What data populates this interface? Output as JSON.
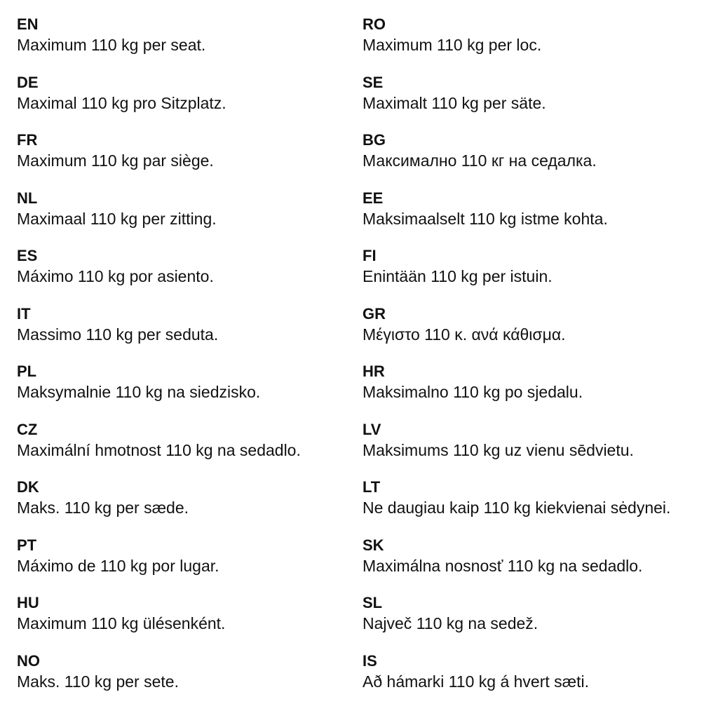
{
  "columns": [
    [
      {
        "code": "EN",
        "text": "Maximum 110 kg per seat."
      },
      {
        "code": "DE",
        "text": "Maximal 110 kg pro Sitzplatz."
      },
      {
        "code": "FR",
        "text": "Maximum 110 kg par siège."
      },
      {
        "code": "NL",
        "text": "Maximaal 110 kg per zitting."
      },
      {
        "code": "ES",
        "text": "Máximo 110 kg por asiento."
      },
      {
        "code": "IT",
        "text": "Massimo 110 kg per seduta."
      },
      {
        "code": "PL",
        "text": "Maksymalnie 110 kg na siedzisko."
      },
      {
        "code": "CZ",
        "text": "Maximální hmotnost 110 kg na sedadlo."
      },
      {
        "code": "DK",
        "text": "Maks. 110 kg per sæde."
      },
      {
        "code": "PT",
        "text": "Máximo de 110 kg por lugar."
      },
      {
        "code": "HU",
        "text": "Maximum 110 kg ülésenként."
      },
      {
        "code": "NO",
        "text": "Maks. 110 kg per sete."
      }
    ],
    [
      {
        "code": "RO",
        "text": "Maximum 110 kg per loc."
      },
      {
        "code": "SE",
        "text": "Maximalt 110 kg per säte."
      },
      {
        "code": "BG",
        "text": "Максимално 110 кг на седалка."
      },
      {
        "code": "EE",
        "text": "Maksimaalselt 110 kg istme kohta."
      },
      {
        "code": "FI",
        "text": "Enintään 110 kg per istuin."
      },
      {
        "code": "GR",
        "text": "Μέγιστο 110 κ. ανά κάθισμα."
      },
      {
        "code": "HR",
        "text": "Maksimalno 110 kg po sjedalu."
      },
      {
        "code": "LV",
        "text": "Maksimums 110 kg uz vienu sēdvietu."
      },
      {
        "code": "LT",
        "text": "Ne daugiau kaip 110 kg kiekvienai sėdynei."
      },
      {
        "code": "SK",
        "text": "Maximálna nosnosť 110 kg na sedadlo."
      },
      {
        "code": "SL",
        "text": "Največ 110 kg na sedež."
      },
      {
        "code": "IS",
        "text": "Að hámarki 110 kg á hvert sæti."
      }
    ]
  ]
}
